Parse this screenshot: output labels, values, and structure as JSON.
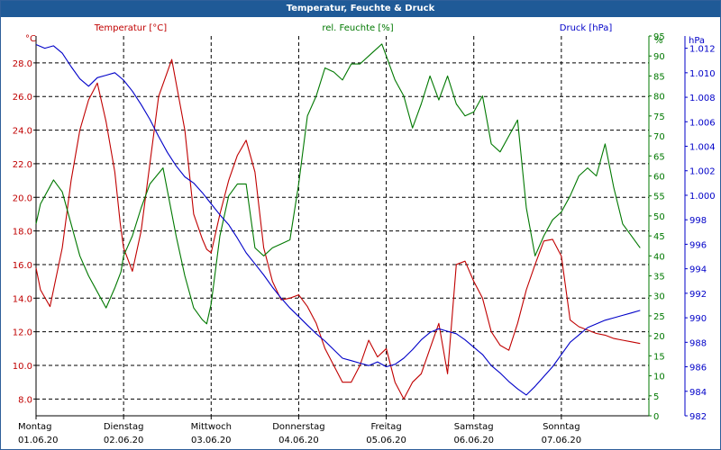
{
  "window_title": "Temperatur, Feuchte & Druck",
  "colors": {
    "temp": "#c00000",
    "hum": "#007800",
    "press": "#0000c8",
    "grid": "#000000",
    "title_bg": "#1f5a97"
  },
  "headers": {
    "temp_unit": "°C",
    "temp_label": "Temperatur [°C]",
    "hum_label": "rel. Feuchte [%]",
    "hum_unit": "%",
    "press_label": "Druck [hPa]",
    "press_unit": "hPa"
  },
  "chart_data": {
    "type": "line",
    "title": "Temperatur, Feuchte & Druck",
    "x_categories": [
      {
        "day": "Montag",
        "date": "01.06.20"
      },
      {
        "day": "Dienstag",
        "date": "02.06.20"
      },
      {
        "day": "Mittwoch",
        "date": "03.06.20"
      },
      {
        "day": "Donnerstag",
        "date": "04.06.20"
      },
      {
        "day": "Freitag",
        "date": "05.06.20"
      },
      {
        "day": "Samstag",
        "date": "06.06.20"
      },
      {
        "day": "Sonntag",
        "date": "07.06.20"
      }
    ],
    "x_range_days": [
      0,
      7
    ],
    "axes": {
      "temperature": {
        "label": "Temperatur [°C]",
        "unit": "°C",
        "range": [
          7,
          29.6
        ],
        "ticks": [
          "8.0",
          "10.0",
          "12.0",
          "14.0",
          "16.0",
          "18.0",
          "20.0",
          "22.0",
          "24.0",
          "26.0",
          "28.0"
        ]
      },
      "humidity": {
        "label": "rel. Feuchte [%]",
        "unit": "%",
        "range": [
          0,
          95
        ],
        "ticks": [
          "0",
          "5",
          "10",
          "15",
          "20",
          "25",
          "30",
          "35",
          "40",
          "45",
          "50",
          "55",
          "60",
          "65",
          "70",
          "75",
          "80",
          "85",
          "90",
          "95"
        ]
      },
      "pressure": {
        "label": "Druck [hPa]",
        "unit": "hPa",
        "range": [
          982,
          1013
        ],
        "ticks": [
          "982",
          "984",
          "986",
          "988",
          "990",
          "992",
          "994",
          "996",
          "998",
          "1.000",
          "1.002",
          "1.004",
          "1.006",
          "1.008",
          "1.010",
          "1.012"
        ]
      }
    },
    "grid": true,
    "series": [
      {
        "name": "Temperatur [°C]",
        "axis": "temperature",
        "x": [
          0.0,
          0.05,
          0.16,
          0.3,
          0.4,
          0.5,
          0.6,
          0.7,
          0.8,
          0.9,
          0.96,
          1.0,
          1.1,
          1.2,
          1.3,
          1.4,
          1.55,
          1.7,
          1.8,
          1.9,
          1.95,
          2.0,
          2.1,
          2.2,
          2.3,
          2.4,
          2.5,
          2.6,
          2.7,
          2.8,
          2.9,
          3.0,
          3.1,
          3.2,
          3.3,
          3.4,
          3.5,
          3.6,
          3.7,
          3.8,
          3.9,
          4.0,
          4.1,
          4.2,
          4.3,
          4.4,
          4.5,
          4.6,
          4.7,
          4.8,
          4.9,
          5.0,
          5.1,
          5.2,
          5.3,
          5.4,
          5.5,
          5.6,
          5.7,
          5.8,
          5.9,
          6.0,
          6.1,
          6.2,
          6.3,
          6.4,
          6.5,
          6.6,
          6.7,
          6.8,
          6.9
        ],
        "values": [
          15.8,
          14.5,
          13.5,
          17.0,
          21.0,
          24.0,
          25.8,
          26.8,
          24.5,
          21.5,
          18.5,
          17.0,
          15.6,
          18.0,
          22.0,
          26.0,
          28.2,
          24.0,
          19.0,
          17.5,
          16.9,
          16.7,
          19.0,
          21.0,
          22.5,
          23.4,
          21.5,
          17.0,
          15.0,
          13.9,
          14.0,
          14.2,
          13.5,
          12.5,
          11.0,
          10.0,
          9.0,
          9.0,
          10.0,
          11.5,
          10.5,
          11.0,
          9.0,
          8.0,
          9.0,
          9.5,
          11.0,
          12.5,
          9.5,
          16.0,
          16.2,
          15.0,
          14.0,
          12.0,
          11.2,
          10.9,
          12.5,
          14.5,
          16.0,
          17.4,
          17.5,
          16.5,
          12.7,
          12.3,
          12.1,
          11.9,
          11.8,
          11.6,
          11.5,
          11.4,
          11.3
        ]
      },
      {
        "name": "rel. Feuchte [%]",
        "axis": "humidity",
        "x": [
          0.0,
          0.05,
          0.15,
          0.2,
          0.3,
          0.4,
          0.5,
          0.6,
          0.7,
          0.8,
          0.9,
          0.97,
          1.0,
          1.1,
          1.2,
          1.3,
          1.45,
          1.6,
          1.7,
          1.8,
          1.9,
          1.95,
          2.0,
          2.1,
          2.2,
          2.3,
          2.4,
          2.5,
          2.6,
          2.7,
          2.8,
          2.9,
          3.0,
          3.1,
          3.2,
          3.3,
          3.4,
          3.5,
          3.6,
          3.7,
          3.8,
          3.9,
          3.95,
          4.0,
          4.1,
          4.2,
          4.3,
          4.4,
          4.5,
          4.6,
          4.7,
          4.8,
          4.9,
          5.0,
          5.1,
          5.2,
          5.3,
          5.4,
          5.5,
          5.6,
          5.7,
          5.8,
          5.9,
          6.0,
          6.1,
          6.2,
          6.3,
          6.4,
          6.5,
          6.6,
          6.7,
          6.8,
          6.9
        ],
        "values": [
          48,
          53,
          57,
          59,
          56,
          48,
          40,
          35,
          31,
          27,
          32,
          36,
          40,
          45,
          52,
          58,
          62,
          45,
          35,
          27,
          24,
          23,
          28,
          45,
          55,
          58,
          58,
          42,
          40,
          42,
          43,
          44,
          58,
          75,
          80,
          87,
          86,
          84,
          88,
          88,
          90,
          92,
          93,
          90,
          84,
          80,
          72,
          78,
          85,
          79,
          85,
          78,
          75,
          76,
          80,
          68,
          66,
          70,
          74,
          52,
          40,
          45,
          49,
          51,
          55,
          60,
          62,
          60,
          68,
          57,
          48,
          45,
          42
        ]
      },
      {
        "name": "Druck [hPa]",
        "axis": "pressure",
        "x": [
          0.0,
          0.1,
          0.2,
          0.3,
          0.4,
          0.5,
          0.6,
          0.7,
          0.8,
          0.9,
          1.0,
          1.1,
          1.2,
          1.3,
          1.4,
          1.5,
          1.6,
          1.7,
          1.8,
          1.9,
          2.0,
          2.1,
          2.2,
          2.3,
          2.4,
          2.5,
          2.6,
          2.7,
          2.8,
          2.9,
          3.0,
          3.1,
          3.2,
          3.3,
          3.4,
          3.5,
          3.6,
          3.7,
          3.8,
          3.9,
          4.0,
          4.1,
          4.2,
          4.3,
          4.4,
          4.5,
          4.6,
          4.7,
          4.8,
          4.9,
          5.0,
          5.1,
          5.2,
          5.3,
          5.4,
          5.5,
          5.6,
          5.7,
          5.8,
          5.9,
          6.0,
          6.1,
          6.2,
          6.3,
          6.4,
          6.5,
          6.6,
          6.7,
          6.8,
          6.9
        ],
        "values": [
          1012.3,
          1012.0,
          1012.2,
          1011.6,
          1010.5,
          1009.5,
          1008.9,
          1009.6,
          1009.8,
          1010.0,
          1009.4,
          1008.5,
          1007.4,
          1006.2,
          1004.8,
          1003.5,
          1002.4,
          1001.5,
          1001.0,
          1000.2,
          999.3,
          998.4,
          997.6,
          996.5,
          995.3,
          994.4,
          993.5,
          992.5,
          991.6,
          990.8,
          990.1,
          989.4,
          988.7,
          988.1,
          987.4,
          986.7,
          986.5,
          986.3,
          986.1,
          986.4,
          986.0,
          986.2,
          986.7,
          987.4,
          988.2,
          988.8,
          989.1,
          988.9,
          988.7,
          988.2,
          987.6,
          987.0,
          986.1,
          985.5,
          984.8,
          984.2,
          983.7,
          984.4,
          985.2,
          986.0,
          987.0,
          988.0,
          988.6,
          989.2,
          989.5,
          989.8,
          990.0,
          990.2,
          990.4,
          990.6
        ]
      }
    ]
  }
}
